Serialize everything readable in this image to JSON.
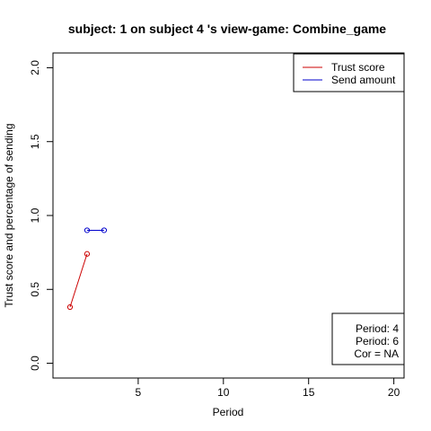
{
  "chart_data": {
    "type": "line",
    "title": "subject:  1  on subject  4 's view-game:  Combine_game",
    "xlabel": "Period",
    "ylabel": "Trust score and percentage of sending",
    "xlim": [
      0,
      20.6
    ],
    "ylim": [
      -0.1,
      2.1
    ],
    "x_ticks": [
      5,
      10,
      15,
      20
    ],
    "y_ticks": [
      0.0,
      0.5,
      1.0,
      1.5,
      2.0
    ],
    "x_tick_labels": [
      "5",
      "10",
      "15",
      "20"
    ],
    "y_tick_labels": [
      "0.0",
      "0.5",
      "1.0",
      "1.5",
      "2.0"
    ],
    "grid": false,
    "legend_position": "top-right",
    "series": [
      {
        "name": "Trust score",
        "color": "#cc0000",
        "x": [
          1,
          2
        ],
        "y": [
          0.38,
          0.74
        ]
      },
      {
        "name": "Send amount",
        "color": "#0000cc",
        "x": [
          2,
          3
        ],
        "y": [
          0.9,
          0.9
        ]
      }
    ],
    "info_box": {
      "position": "bottom-right",
      "lines": [
        "Period:  4",
        "Period:  6",
        "Cor =  NA"
      ]
    }
  }
}
